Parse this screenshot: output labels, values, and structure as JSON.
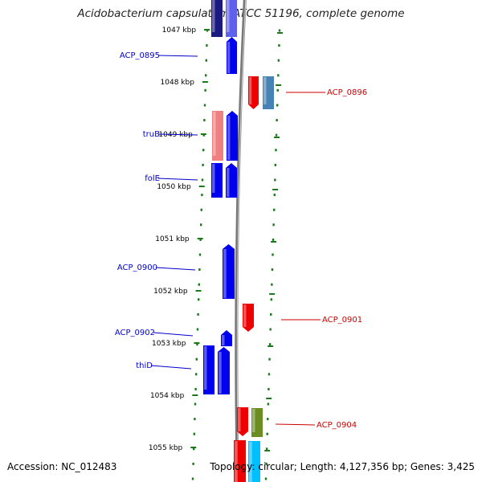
{
  "header": {
    "title": "Acidobacterium capsulatum ATCC 51196, complete genome"
  },
  "footer": {
    "accession": "Accession: NC_012483",
    "summary": "Topology: circular; Length: 4,127,356 bp; Genes: 3,425"
  },
  "map": {
    "ticks": [
      "1047 kbp",
      "1048 kbp",
      "1049 kbp",
      "1050 kbp",
      "1051 kbp",
      "1052 kbp",
      "1053 kbp",
      "1054 kbp",
      "1055 kbp"
    ],
    "colors": {
      "forward_label": "#0000cc",
      "reverse_label": "#cc0000",
      "backbone": "#888888",
      "tick_green": "#1a7a1a"
    },
    "features": [
      {
        "name": "",
        "strand": "+",
        "color": "#1a1a80"
      },
      {
        "name": "",
        "strand": "+",
        "color": "#6060ee"
      },
      {
        "name": "ACP_0895",
        "strand": "+",
        "color": "#0000ee"
      },
      {
        "name": "ACP_0896",
        "strand": "-",
        "color": "#ee0000"
      },
      {
        "name": "",
        "strand": "-",
        "color": "#4682b4"
      },
      {
        "name": "truB",
        "strand": "+",
        "color": "#f08080"
      },
      {
        "name": "",
        "strand": "+",
        "color": "#0000ee"
      },
      {
        "name": "folE",
        "strand": "+",
        "color": "#0000ee"
      },
      {
        "name": "",
        "strand": "+",
        "color": "#0000ee"
      },
      {
        "name": "ACP_0900",
        "strand": "+",
        "color": "#0000ee"
      },
      {
        "name": "ACP_0901",
        "strand": "-",
        "color": "#ee0000"
      },
      {
        "name": "ACP_0902",
        "strand": "+",
        "color": "#0000ee"
      },
      {
        "name": "thiD",
        "strand": "+",
        "color": "#0000ee"
      },
      {
        "name": "",
        "strand": "+",
        "color": "#0000ee"
      },
      {
        "name": "ACP_0904",
        "strand": "-",
        "color": "#ee0000"
      },
      {
        "name": "",
        "strand": "-",
        "color": "#6b8e23"
      },
      {
        "name": "",
        "strand": "-",
        "color": "#ee0000"
      },
      {
        "name": "",
        "strand": "-",
        "color": "#00bfff"
      }
    ]
  }
}
